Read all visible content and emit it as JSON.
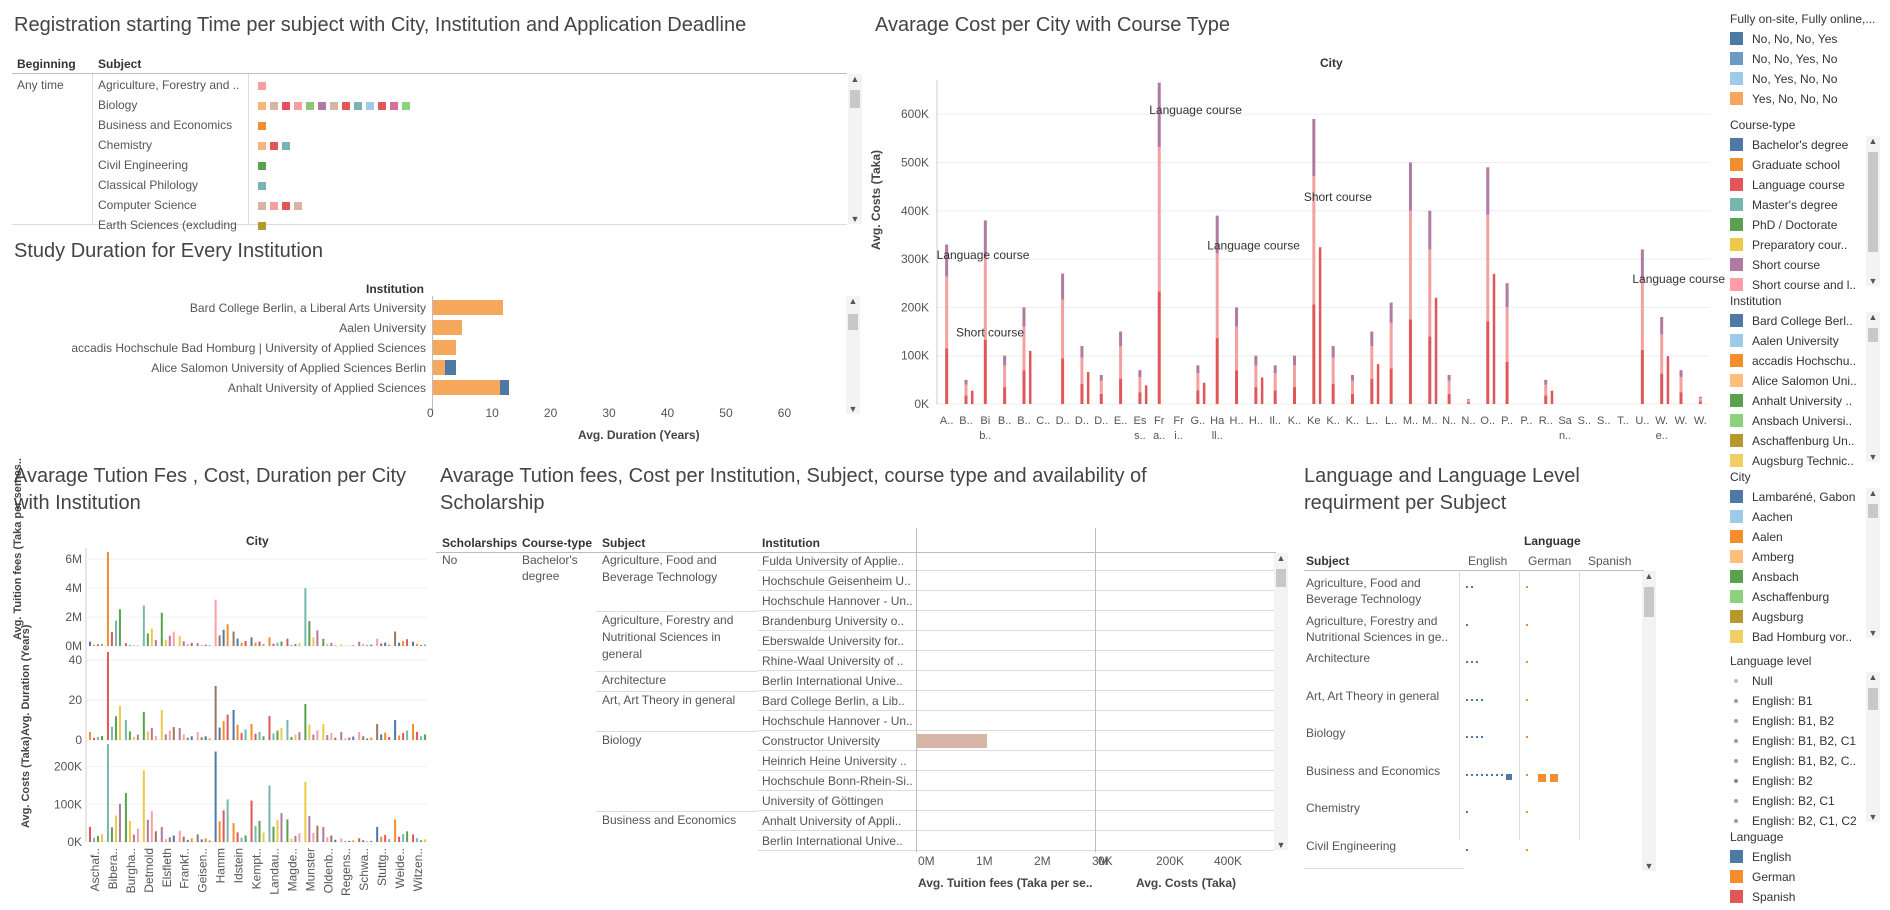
{
  "titles": {
    "registration": "Registration starting Time per subject with City, Institution and Application Deadline",
    "avg_cost_city": "Avarage Cost per City with Course Type",
    "study_duration": "Study Duration for Every Institution",
    "tuition_city_1": "Avarage Tution Fes , Cost, Duration per City",
    "tuition_city_2": "with Institution",
    "tuition_inst_1": "Avarage Tution fees, Cost per Institution, Subject, course type and availability of",
    "tuition_inst_2": "Scholarship",
    "language_1": "Language and Language Level",
    "language_2": "requirment per Subject"
  },
  "registration": {
    "col_beginning": "Beginning",
    "col_subject": "Subject",
    "beginning_value": "Any time",
    "subjects": [
      "Agriculture, Forestry and ..",
      "Biology",
      "Business and Economics",
      "Chemistry",
      "Civil Engineering",
      "Classical Philology",
      "Computer Science",
      "Earth Sciences (excluding"
    ],
    "marks": [
      [
        "#f4a0a0"
      ],
      [
        "#f5b87a",
        "#d9b3a3",
        "#e4515c",
        "#f4a0a0",
        "#8cc679",
        "#b07aa1",
        "#d9b3a3",
        "#e15759",
        "#79b4b0",
        "#a0cbe8",
        "#e15759",
        "#d37295",
        "#8cd17d"
      ],
      [
        "#f28e2b"
      ],
      [
        "#f5b87a",
        "#e15759",
        "#79b4b0"
      ],
      [
        "#59a14f"
      ],
      [
        "#79b4b0"
      ],
      [
        "#d9b3a3",
        "#f4a0a0",
        "#e15759",
        "#d9b3a3"
      ],
      [
        "#b6992d"
      ]
    ]
  },
  "study_duration": {
    "header": "Institution",
    "xlabel": "Avg. Duration (Years)",
    "ticks": [
      "0",
      "10",
      "20",
      "30",
      "40",
      "50",
      "60"
    ],
    "institutions": [
      "Bard College Berlin, a Liberal Arts University",
      "Aalen University",
      "accadis Hochschule Bad Homburg | University of Applied Sciences",
      "Alice Salomon University of Applied Sciences Berlin",
      "Anhalt University of Applied Sciences"
    ]
  },
  "avg_cost_city": {
    "header": "City",
    "ylabel": "Avg. Costs (Taka)",
    "yticks": [
      "0K",
      "100K",
      "200K",
      "300K",
      "400K",
      "500K",
      "600K"
    ],
    "annotations": [
      "Language course",
      "Short course",
      "Language course",
      "Language course",
      "Short course",
      "Language course"
    ],
    "xlabels": [
      "A..",
      "B..",
      "Bi b..",
      "B..",
      "B..",
      "C..",
      "D..",
      "D..",
      "D..",
      "E..",
      "Es s..",
      "Fr a..",
      "Fr i..",
      "G..",
      "Ha ll..",
      "H..",
      "H..",
      "Il..",
      "K..",
      "Ke",
      "K..",
      "K..",
      "L..",
      "L..",
      "M..",
      "M..",
      "N..",
      "N..",
      "O..",
      "P..",
      "P..",
      "R..",
      "Sa n..",
      "S..",
      "S..",
      "T..",
      "U..",
      "W. e..",
      "W.",
      "W."
    ]
  },
  "chart_data": [
    {
      "type": "bar",
      "title": "Study Duration for Every Institution",
      "xlabel": "Avg. Duration (Years)",
      "xlim": [
        0,
        65
      ],
      "categories": [
        "Bard College Berlin, a Liberal Arts University",
        "Aalen University",
        "accadis Hochschule Bad Homburg | University of Applied Sciences",
        "Alice Salomon University of Applied Sciences Berlin",
        "Anhalt University of Applied Sciences"
      ],
      "series": [
        {
          "name": "Yes, No, No, No",
          "values": [
            12,
            5,
            4,
            2,
            11.5
          ]
        },
        {
          "name": "No, No, No, Yes",
          "values": [
            0,
            0,
            0,
            2,
            1.5
          ]
        }
      ],
      "colors": [
        "#f5a75c",
        "#4e79a7"
      ]
    },
    {
      "type": "bar",
      "title": "Avarage Cost per City with Course Type",
      "ylabel": "Avg. Costs (Taka)",
      "ylim": [
        0,
        650000
      ],
      "categories": [
        "A..",
        "B..",
        "Bi b..",
        "B..",
        "B..",
        "C..",
        "D..",
        "D..",
        "D..",
        "E..",
        "Es s..",
        "Fr a..",
        "Fr i..",
        "G..",
        "Ha ll..",
        "H..",
        "H..",
        "Il..",
        "K..",
        "Ke",
        "K..",
        "K..",
        "L..",
        "L..",
        "M..",
        "M..",
        "N..",
        "N..",
        "O..",
        "P..",
        "P..",
        "R..",
        "Sa n..",
        "S..",
        "S..",
        "T..",
        "U..",
        "W. e..",
        "W.",
        "W."
      ],
      "values": [
        330000,
        50000,
        380000,
        100000,
        200000,
        0,
        270000,
        120000,
        60000,
        150000,
        70000,
        665000,
        0,
        80000,
        390000,
        200000,
        100000,
        80000,
        100000,
        590000,
        120000,
        60000,
        150000,
        210000,
        500000,
        400000,
        60000,
        10000,
        490000,
        250000,
        0,
        50000,
        0,
        0,
        0,
        0,
        320000,
        180000,
        70000,
        15000
      ],
      "annotations": [
        {
          "label": "Language course",
          "x": "A..",
          "y": 300000
        },
        {
          "label": "Short course",
          "x": "B..",
          "y": 140000
        },
        {
          "label": "Language course",
          "x": "Fr a..",
          "y": 600000
        },
        {
          "label": "Language course",
          "x": "Ha ll..",
          "y": 320000
        },
        {
          "label": "Short course",
          "x": "Ke",
          "y": 420000
        },
        {
          "label": "Language course",
          "x": "U..",
          "y": 250000
        }
      ]
    },
    {
      "type": "bar",
      "title": "Avarage Tution Fes , Cost, Duration per City with Institution",
      "categories": [
        "Aschaf..",
        "Bibera..",
        "Burgha..",
        "Detmold",
        "Elsfleth",
        "Frankf..",
        "Geisen..",
        "Hamm",
        "Idstein",
        "Kempt..",
        "Landau..",
        "Magde..",
        "Munster",
        "Oldenb..",
        "Regens..",
        "Schwa..",
        "Stuttg..",
        "Weide..",
        "Witzen.."
      ],
      "series": [
        {
          "name": "Avg. Tuition fees (Taka per semes..",
          "yticks": [
            "0M",
            "2M",
            "4M",
            "6M"
          ],
          "values": [
            300000,
            6500000,
            200000,
            2800000,
            2300000,
            700000,
            200000,
            3200000,
            1000000,
            600000,
            600000,
            500000,
            4000000,
            500000,
            100000,
            300000,
            500000,
            1000000,
            300000
          ]
        },
        {
          "name": "Avg. Duration (Years)",
          "yticks": [
            "0",
            "20",
            "40"
          ],
          "values": [
            4,
            44,
            10,
            14,
            15,
            6,
            4,
            27,
            15,
            8,
            12,
            10,
            18,
            8,
            4,
            4,
            8,
            10,
            8
          ]
        },
        {
          "name": "Avg. Costs (Taka)",
          "yticks": [
            "0K",
            "100K",
            "200K"
          ],
          "values": [
            40000,
            260000,
            130000,
            190000,
            40000,
            30000,
            20000,
            240000,
            50000,
            110000,
            150000,
            60000,
            160000,
            40000,
            10000,
            10000,
            40000,
            60000,
            20000
          ]
        }
      ]
    },
    {
      "type": "bar",
      "title": "Avarage Tution fees, Cost per Institution, Subject, course type and availability of Scholarship",
      "categories": [
        "Fulda University of Applie..",
        "Hochschule Geisenheim U..",
        "Hochschule Hannover - Un..",
        "Brandenburg University o..",
        "Eberswalde University for..",
        "Rhine-Waal University of ..",
        "Berlin International Unive..",
        "Bard College Berlin, a Lib..",
        "Hochschule Hannover - Un..",
        "Constructor University",
        "Heinrich Heine University ..",
        "Hochschule Bonn-Rhein-Si..",
        "University of Göttingen",
        "Anhalt University of Appli..",
        "Berlin International Unive.."
      ],
      "series": [
        {
          "name": "Avg. Tuition fees (Taka per se..",
          "values": [
            0,
            0,
            0,
            0,
            0,
            0,
            0,
            0,
            0,
            1200000,
            0,
            0,
            0,
            0,
            0
          ]
        },
        {
          "name": "Avg. Costs (Taka)",
          "values": [
            0,
            0,
            0,
            0,
            0,
            0,
            0,
            0,
            0,
            0,
            0,
            0,
            0,
            0,
            0
          ]
        }
      ]
    }
  ],
  "tuition_city": {
    "header": "City",
    "ylabels": [
      "Avg. Tuition fees (Taka per semes..",
      "Avg. Duration (Years)",
      "Avg. Costs (Taka)"
    ],
    "yticks_1": [
      "6M",
      "4M",
      "2M",
      "0M"
    ],
    "yticks_2": [
      "40",
      "20",
      "0"
    ],
    "yticks_3": [
      "200K",
      "100K",
      "0K"
    ],
    "cities": [
      "Aschaf..",
      "Bibera..",
      "Burgha..",
      "Detmold",
      "Elsfleth",
      "Frankf..",
      "Geisen..",
      "Hamm",
      "Idstein",
      "Kempt..",
      "Landau..",
      "Magde..",
      "Munster",
      "Oldenb..",
      "Regens..",
      "Schwa..",
      "Stuttg..",
      "Weide..",
      "Witzen.."
    ]
  },
  "tuition_inst": {
    "col_scholarships": "Scholarships",
    "col_course": "Course-type",
    "col_subject": "Subject",
    "col_institution": "Institution",
    "scholarship_value": "No",
    "course_value_1": "Bachelor's",
    "course_value_2": "degree",
    "subjects": [
      {
        "l1": "Agriculture, Food and",
        "l2": "Beverage Technology",
        "l3": ""
      },
      {
        "l1": "Agriculture, Forestry and",
        "l2": "Nutritional Sciences in",
        "l3": "general"
      },
      {
        "l1": "Architecture",
        "l2": "",
        "l3": ""
      },
      {
        "l1": "Art, Art Theory in general",
        "l2": "",
        "l3": ""
      },
      {
        "l1": "Biology",
        "l2": "",
        "l3": ""
      },
      {
        "l1": "Business and Economics",
        "l2": "",
        "l3": ""
      }
    ],
    "institutions": [
      "Fulda University of Applie..",
      "Hochschule Geisenheim U..",
      "Hochschule Hannover - Un..",
      "Brandenburg University o..",
      "Eberswalde University for..",
      "Rhine-Waal University of ..",
      "Berlin International Unive..",
      "Bard College Berlin, a Lib..",
      "Hochschule Hannover - Un..",
      "Constructor University",
      "Heinrich Heine University ..",
      "Hochschule Bonn-Rhein-Si..",
      "University of Göttingen",
      "Anhalt University of Appli..",
      "Berlin International Unive.."
    ],
    "xlabel_1": "Avg. Tuition fees (Taka per se..",
    "xlabel_2": "Avg. Costs (Taka)",
    "ticks_1": [
      "0M",
      "1M",
      "2M",
      "3M"
    ],
    "ticks_2": [
      "0K",
      "200K",
      "400K"
    ]
  },
  "language": {
    "header": "Language",
    "col_subject": "Subject",
    "langs": [
      "English",
      "German",
      "Spanish"
    ],
    "subjects": [
      {
        "l1": "Agriculture, Food and",
        "l2": "Beverage Technology"
      },
      {
        "l1": "Agriculture, Forestry and",
        "l2": "Nutritional Sciences in ge.."
      },
      {
        "l1": "Architecture",
        "l2": ""
      },
      {
        "l1": "Art, Art Theory in general",
        "l2": ""
      },
      {
        "l1": "Biology",
        "l2": ""
      },
      {
        "l1": "Business and Economics",
        "l2": ""
      },
      {
        "l1": "Chemistry",
        "l2": ""
      },
      {
        "l1": "Civil Engineering",
        "l2": ""
      }
    ]
  },
  "legends": {
    "modes": {
      "title": "Fully on-site, Fully online,...",
      "items": [
        {
          "label": "No, No, No, Yes",
          "color": "#4e79a7"
        },
        {
          "label": "No, No, Yes, No",
          "color": "#6b9ac4"
        },
        {
          "label": "No, Yes, No, No",
          "color": "#a0cbe8"
        },
        {
          "label": "Yes, No, No, No",
          "color": "#f5a75c"
        }
      ]
    },
    "course_type": {
      "title": "Course-type",
      "items": [
        {
          "label": "Bachelor's degree",
          "color": "#4e79a7"
        },
        {
          "label": "Graduate school",
          "color": "#f28e2b"
        },
        {
          "label": "Language course",
          "color": "#e15759"
        },
        {
          "label": "Master's degree",
          "color": "#76b7b2"
        },
        {
          "label": "PhD / Doctorate",
          "color": "#59a14f"
        },
        {
          "label": "Preparatory cour..",
          "color": "#edc948"
        },
        {
          "label": "Short course",
          "color": "#b07aa1"
        },
        {
          "label": "Short course and l..",
          "color": "#ff9da7"
        }
      ]
    },
    "institution": {
      "title": "Institution",
      "items": [
        {
          "label": "Bard College Berl..",
          "color": "#4e79a7"
        },
        {
          "label": "Aalen University",
          "color": "#a0cbe8"
        },
        {
          "label": "accadis Hochschu..",
          "color": "#f28e2b"
        },
        {
          "label": "Alice Salomon Uni..",
          "color": "#ffbe7d"
        },
        {
          "label": "Anhalt University ..",
          "color": "#59a14f"
        },
        {
          "label": "Ansbach Universi..",
          "color": "#8cd17d"
        },
        {
          "label": "Aschaffenburg Un..",
          "color": "#b6992d"
        },
        {
          "label": "Augsburg Technic..",
          "color": "#f1ce63"
        }
      ]
    },
    "city": {
      "title": "City",
      "items": [
        {
          "label": "Lambaréné, Gabon",
          "color": "#4e79a7"
        },
        {
          "label": "Aachen",
          "color": "#a0cbe8"
        },
        {
          "label": "Aalen",
          "color": "#f28e2b"
        },
        {
          "label": "Amberg",
          "color": "#ffbe7d"
        },
        {
          "label": "Ansbach",
          "color": "#59a14f"
        },
        {
          "label": "Aschaffenburg",
          "color": "#8cd17d"
        },
        {
          "label": "Augsburg",
          "color": "#b6992d"
        },
        {
          "label": "Bad Homburg vor..",
          "color": "#f1ce63"
        }
      ]
    },
    "language_level": {
      "title": "Language level",
      "items": [
        {
          "label": "Null",
          "color": "#bdbdbd"
        },
        {
          "label": "English: B1",
          "color": "#a0a0a0"
        },
        {
          "label": "English: B1, B2",
          "color": "#a0a0a0"
        },
        {
          "label": "English: B1, B2, C1",
          "color": "#a0a0a0"
        },
        {
          "label": "English: B1, B2, C..",
          "color": "#a0a0a0"
        },
        {
          "label": "English: B2",
          "color": "#8a8a8a"
        },
        {
          "label": "English: B2, C1",
          "color": "#a0a0a0"
        },
        {
          "label": "English: B2, C1, C2",
          "color": "#a0a0a0"
        }
      ]
    },
    "language": {
      "title": "Language",
      "items": [
        {
          "label": "English",
          "color": "#4e79a7"
        },
        {
          "label": "German",
          "color": "#f28e2b"
        },
        {
          "label": "Spanish",
          "color": "#e15759"
        }
      ]
    }
  }
}
